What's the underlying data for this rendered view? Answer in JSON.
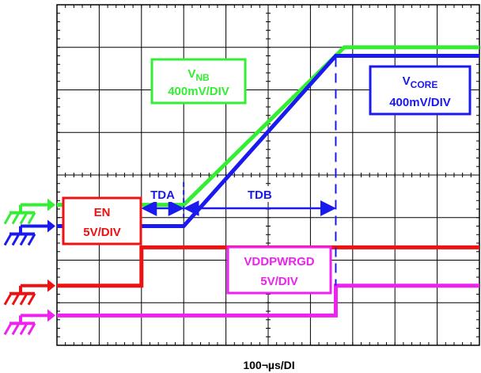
{
  "chart_data": {
    "type": "line",
    "title": "",
    "xlabel": "100¬µs/DI",
    "xlim": [
      0,
      10
    ],
    "x_units_per_division": 1,
    "grid": true,
    "series": [
      {
        "name": "VNB",
        "label": {
          "main": "V",
          "sub": "NB",
          "scale": "400mV/DIV"
        },
        "color": "#33ee33",
        "level_div": [
          3.3,
          3.3,
          7.0,
          7.0
        ],
        "x": [
          0,
          3.0,
          6.8,
          10
        ]
      },
      {
        "name": "VCORE",
        "label": {
          "main": "V",
          "sub": "CORE",
          "scale": "400mV/DIV"
        },
        "color": "#1a1aee",
        "level_div": [
          2.8,
          2.8,
          6.8,
          6.8
        ],
        "x": [
          0,
          3.0,
          6.6,
          10
        ]
      },
      {
        "name": "EN",
        "label": {
          "main": "EN",
          "sub": "",
          "scale": "5V/DIV"
        },
        "color": "#ee1111",
        "level_div": [
          1.4,
          1.4,
          2.3,
          2.3
        ],
        "x": [
          0,
          2.0,
          2.0,
          10
        ]
      },
      {
        "name": "VDDPWRGD",
        "label": {
          "main": "VDDPWRGD",
          "sub": "",
          "scale": "5V/DIV"
        },
        "color": "#ee22ee",
        "level_div": [
          0.7,
          0.7,
          1.4,
          1.4
        ],
        "x": [
          0,
          6.6,
          6.6,
          10
        ]
      }
    ],
    "annotations": [
      {
        "text": "TDA",
        "from_x": 2.0,
        "to_x": 3.0
      },
      {
        "text": "TDB",
        "from_x": 3.0,
        "to_x": 6.6
      }
    ],
    "ground_marker_colors": [
      "#33ee33",
      "#1a1aee",
      "#ee1111",
      "#ee22ee"
    ]
  }
}
